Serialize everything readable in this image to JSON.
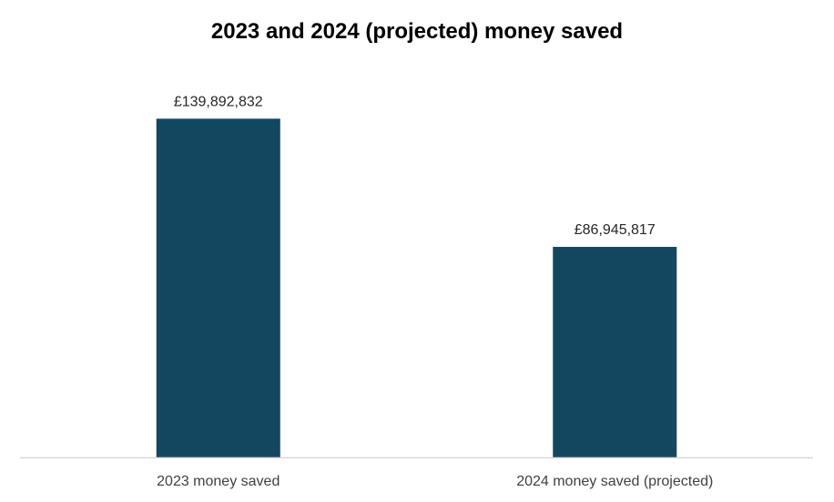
{
  "chart_data": {
    "type": "bar",
    "title": "2023 and 2024 (projected) money saved",
    "categories": [
      "2023 money saved",
      "2024 money saved (projected)"
    ],
    "values": [
      139892832,
      86945817
    ],
    "data_labels": [
      "£139,892,832",
      "£86,945,817"
    ],
    "xlabel": "",
    "ylabel": "",
    "ylim": [
      0,
      140000000
    ],
    "grid": false,
    "legend": "none",
    "bar_color": "#12475f",
    "axis_color": "#d9d9d9"
  }
}
